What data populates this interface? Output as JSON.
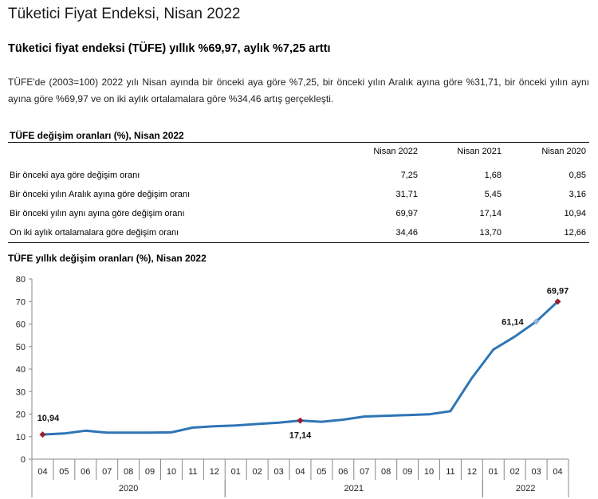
{
  "page": {
    "title": "Tüketici Fiyat Endeksi, Nisan 2022",
    "headline": "Tüketici fiyat endeksi (TÜFE) yıllık %69,97, aylık %7,25 arttı",
    "paragraph": "TÜFE'de (2003=100) 2022 yılı Nisan ayında bir önceki aya göre %7,25, bir önceki yılın Aralık ayına göre %31,71, bir önceki yılın aynı ayına göre %69,97 ve on iki aylık ortalamalara göre %34,46 artış gerçekleşti."
  },
  "table": {
    "title": "TÜFE değişim oranları (%), Nisan 2022",
    "columns": [
      "Nisan 2022",
      "Nisan 2021",
      "Nisan 2020"
    ],
    "rows": [
      {
        "label": "Bir önceki aya göre değişim oranı",
        "values": [
          "7,25",
          "1,68",
          "0,85"
        ]
      },
      {
        "label": "Bir önceki yılın Aralık ayına göre değişim oranı",
        "values": [
          "31,71",
          "5,45",
          "3,16"
        ]
      },
      {
        "label": "Bir önceki yılın aynı ayına göre değişim oranı",
        "values": [
          "69,97",
          "17,14",
          "10,94"
        ]
      },
      {
        "label": "On iki aylık ortalamalara göre değişim oranı",
        "values": [
          "34,46",
          "13,70",
          "12,66"
        ]
      }
    ]
  },
  "chart_data": {
    "type": "line",
    "title": "TÜFE yıllık değişim oranları (%), Nisan 2022",
    "ylim": [
      0,
      80
    ],
    "yticks": [
      "0",
      "10",
      "20",
      "30",
      "40",
      "50",
      "60",
      "70",
      "80"
    ],
    "categories": [
      "04",
      "05",
      "06",
      "07",
      "08",
      "09",
      "10",
      "11",
      "12",
      "01",
      "02",
      "03",
      "04",
      "05",
      "06",
      "07",
      "08",
      "09",
      "10",
      "11",
      "12",
      "01",
      "02",
      "03",
      "04"
    ],
    "years": [
      {
        "label": "2020",
        "count": 9
      },
      {
        "label": "2021",
        "count": 12
      },
      {
        "label": "2022",
        "count": 4
      }
    ],
    "series": [
      {
        "values": [
          10.94,
          11.39,
          12.62,
          11.76,
          11.77,
          11.75,
          11.89,
          14.03,
          14.6,
          14.97,
          15.61,
          16.19,
          17.14,
          16.59,
          17.53,
          18.95,
          19.25,
          19.58,
          19.89,
          21.31,
          36.08,
          48.69,
          54.44,
          61.14,
          69.97
        ]
      }
    ],
    "annotations": [
      {
        "index": 0,
        "label": "10,94"
      },
      {
        "index": 12,
        "label": "17,14"
      },
      {
        "index": 23,
        "label": "61,14"
      },
      {
        "index": 24,
        "label": "69,97"
      }
    ],
    "line_color": "#2e75b6",
    "marker_color": "#9b1b30",
    "light_marker_color": "#8ab4dc"
  }
}
